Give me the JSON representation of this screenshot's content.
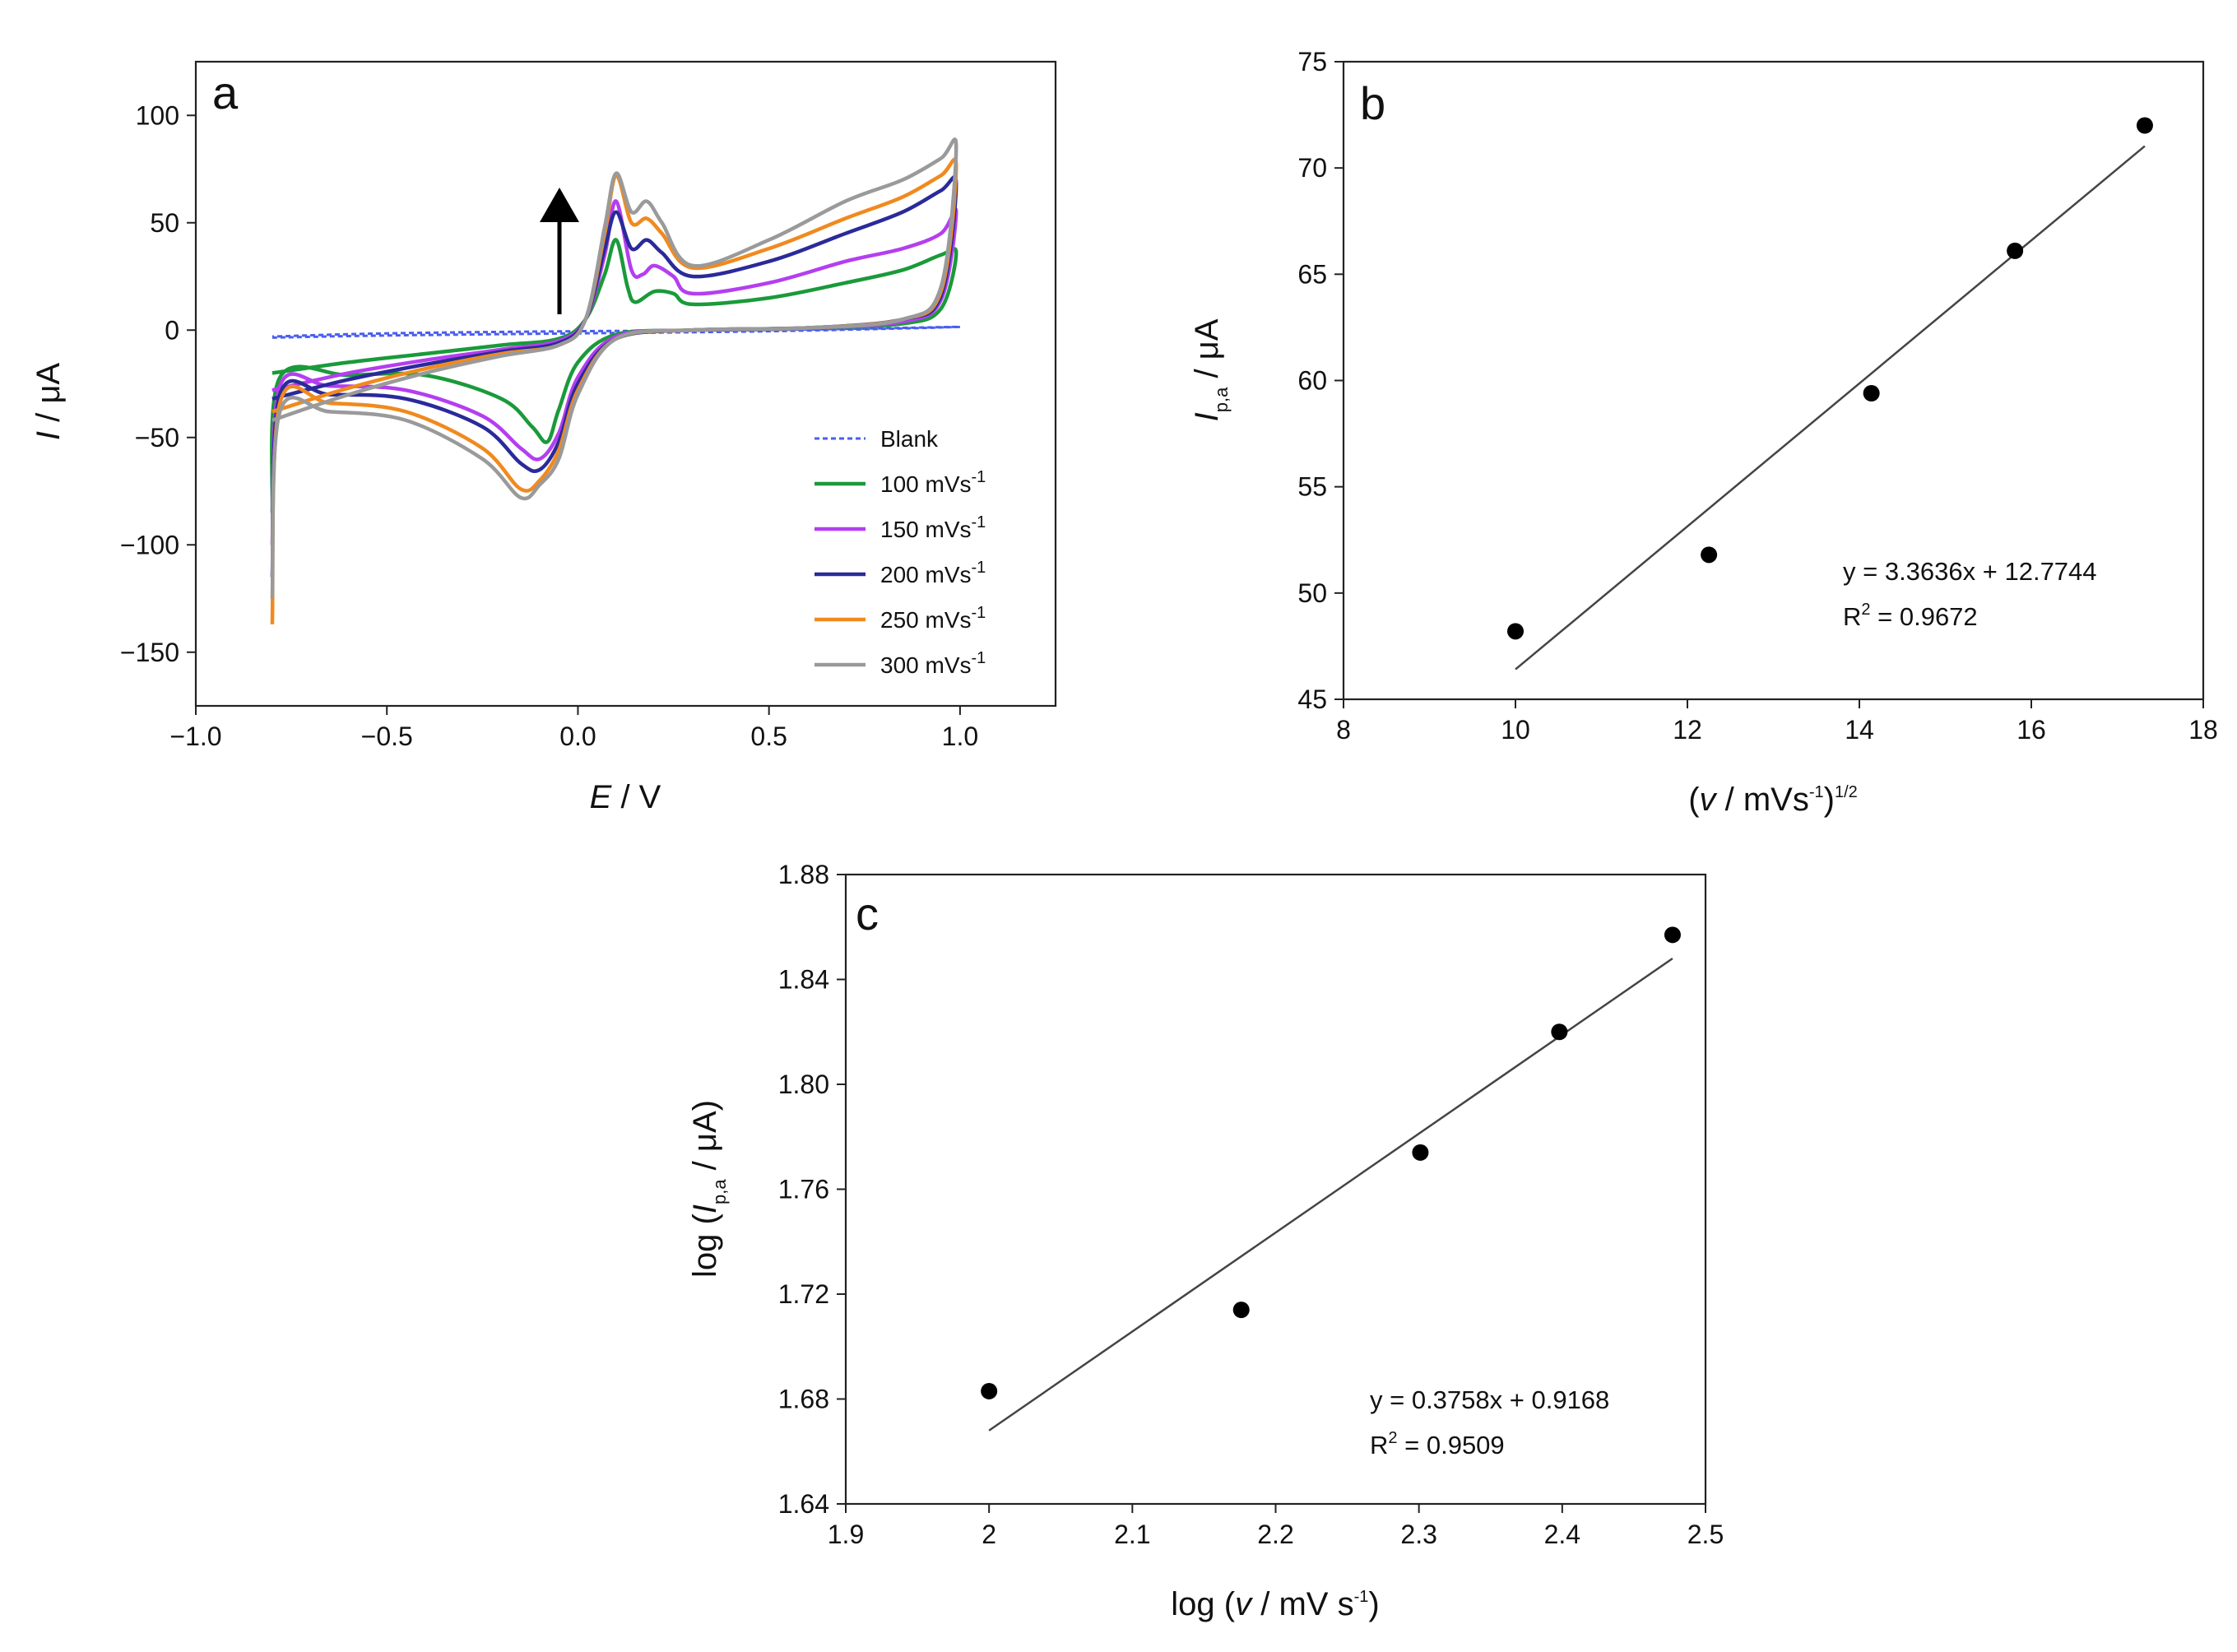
{
  "chart_data": [
    {
      "panel": "a",
      "type": "line",
      "xlabel": {
        "var": "E",
        "unit": " / V"
      },
      "ylabel": {
        "var": "I",
        "unit": " / μA"
      },
      "xlim": [
        -1.0,
        1.25
      ],
      "ylim": [
        -175,
        125
      ],
      "xticks": [
        -1.0,
        -0.5,
        0.0,
        0.5,
        1.0
      ],
      "xtick_labels": [
        "−1.0",
        "−0.5",
        "0.0",
        "0.5",
        "1.0"
      ],
      "yticks": [
        -150,
        -100,
        -50,
        0,
        50,
        100
      ],
      "ytick_labels": [
        "−150",
        "−100",
        "−50",
        "0",
        "50",
        "100"
      ],
      "legend_position": "bottom-right",
      "annotation": "arrow pointing up (increasing scan rate)",
      "series": [
        {
          "name": "Blank",
          "label_text": "Blank",
          "label_sup": "",
          "color": "#4a5ef0",
          "dashed": true,
          "forward": [
            [
              -0.8,
              -3.5
            ],
            [
              -0.5,
              -2.5
            ],
            [
              0,
              -1.5
            ],
            [
              0.5,
              -0.5
            ],
            [
              1.0,
              1.5
            ]
          ],
          "reverse": [
            [
              1.0,
              1.5
            ],
            [
              0.5,
              0
            ],
            [
              0,
              -0.5
            ],
            [
              -0.5,
              -1.5
            ],
            [
              -0.8,
              -3
            ]
          ]
        },
        {
          "name": "100 mVs-1",
          "label_text": "100 mVs",
          "label_sup": "-1",
          "color": "#1a9a3a",
          "dashed": false,
          "forward": [
            [
              -0.8,
              -20
            ],
            [
              -0.6,
              -15
            ],
            [
              -0.4,
              -11
            ],
            [
              -0.2,
              -7
            ],
            [
              -0.05,
              -4
            ],
            [
              0.02,
              5
            ],
            [
              0.07,
              26
            ],
            [
              0.1,
              42
            ],
            [
              0.13,
              20
            ],
            [
              0.15,
              13
            ],
            [
              0.2,
              18
            ],
            [
              0.25,
              17
            ],
            [
              0.3,
              12
            ],
            [
              0.5,
              15
            ],
            [
              0.7,
              22
            ],
            [
              0.85,
              28
            ],
            [
              0.95,
              35
            ],
            [
              0.99,
              36
            ]
          ],
          "reverse": [
            [
              0.99,
              36
            ],
            [
              0.95,
              10
            ],
            [
              0.85,
              3
            ],
            [
              0.6,
              1
            ],
            [
              0.3,
              0
            ],
            [
              0.1,
              -2
            ],
            [
              0.0,
              -15
            ],
            [
              -0.05,
              -37
            ],
            [
              -0.08,
              -52
            ],
            [
              -0.12,
              -45
            ],
            [
              -0.2,
              -32
            ],
            [
              -0.4,
              -21
            ],
            [
              -0.6,
              -21
            ],
            [
              -0.78,
              -22
            ],
            [
              -0.8,
              -85
            ]
          ]
        },
        {
          "name": "150 mVs-1",
          "label_text": "150 mVs",
          "label_sup": "-1",
          "color": "#b43ef0",
          "dashed": false,
          "forward": [
            [
              -0.8,
              -28
            ],
            [
              -0.6,
              -20
            ],
            [
              -0.4,
              -14
            ],
            [
              -0.2,
              -9
            ],
            [
              -0.05,
              -5
            ],
            [
              0.02,
              5
            ],
            [
              0.07,
              35
            ],
            [
              0.1,
              60
            ],
            [
              0.14,
              28
            ],
            [
              0.17,
              26
            ],
            [
              0.2,
              30
            ],
            [
              0.25,
              25
            ],
            [
              0.3,
              17
            ],
            [
              0.5,
              22
            ],
            [
              0.7,
              32
            ],
            [
              0.85,
              38
            ],
            [
              0.95,
              45
            ],
            [
              0.99,
              55
            ]
          ],
          "reverse": [
            [
              0.99,
              55
            ],
            [
              0.95,
              14
            ],
            [
              0.85,
              4
            ],
            [
              0.6,
              1
            ],
            [
              0.3,
              0
            ],
            [
              0.1,
              -3
            ],
            [
              0.0,
              -22
            ],
            [
              -0.05,
              -48
            ],
            [
              -0.1,
              -60
            ],
            [
              -0.15,
              -55
            ],
            [
              -0.25,
              -40
            ],
            [
              -0.45,
              -28
            ],
            [
              -0.65,
              -26
            ],
            [
              -0.78,
              -26
            ],
            [
              -0.8,
              -100
            ]
          ]
        },
        {
          "name": "200 mVs-1",
          "label_text": "200 mVs",
          "label_sup": "-1",
          "color": "#2a2a9a",
          "dashed": false,
          "forward": [
            [
              -0.8,
              -32
            ],
            [
              -0.6,
              -23
            ],
            [
              -0.4,
              -16
            ],
            [
              -0.2,
              -10
            ],
            [
              -0.05,
              -6
            ],
            [
              0.02,
              5
            ],
            [
              0.07,
              38
            ],
            [
              0.1,
              55
            ],
            [
              0.14,
              38
            ],
            [
              0.18,
              42
            ],
            [
              0.22,
              36
            ],
            [
              0.3,
              25
            ],
            [
              0.5,
              32
            ],
            [
              0.7,
              45
            ],
            [
              0.85,
              55
            ],
            [
              0.95,
              65
            ],
            [
              0.99,
              68
            ]
          ],
          "reverse": [
            [
              0.99,
              68
            ],
            [
              0.95,
              16
            ],
            [
              0.85,
              5
            ],
            [
              0.6,
              1
            ],
            [
              0.3,
              0
            ],
            [
              0.1,
              -4
            ],
            [
              0.0,
              -25
            ],
            [
              -0.05,
              -52
            ],
            [
              -0.1,
              -65
            ],
            [
              -0.15,
              -62
            ],
            [
              -0.25,
              -45
            ],
            [
              -0.45,
              -32
            ],
            [
              -0.65,
              -30
            ],
            [
              -0.78,
              -30
            ],
            [
              -0.8,
              -115
            ]
          ]
        },
        {
          "name": "250 mVs-1",
          "label_text": "250 mVs",
          "label_sup": "-1",
          "color": "#f08a1e",
          "dashed": false,
          "forward": [
            [
              -0.8,
              -38
            ],
            [
              -0.6,
              -27
            ],
            [
              -0.4,
              -18
            ],
            [
              -0.2,
              -11
            ],
            [
              -0.05,
              -7
            ],
            [
              0.02,
              5
            ],
            [
              0.07,
              45
            ],
            [
              0.1,
              72
            ],
            [
              0.14,
              50
            ],
            [
              0.18,
              52
            ],
            [
              0.22,
              45
            ],
            [
              0.3,
              29
            ],
            [
              0.5,
              38
            ],
            [
              0.7,
              52
            ],
            [
              0.85,
              62
            ],
            [
              0.95,
              72
            ],
            [
              0.99,
              76
            ]
          ],
          "reverse": [
            [
              0.99,
              76
            ],
            [
              0.95,
              18
            ],
            [
              0.85,
              5
            ],
            [
              0.6,
              1
            ],
            [
              0.3,
              0
            ],
            [
              0.1,
              -4
            ],
            [
              0.0,
              -28
            ],
            [
              -0.05,
              -56
            ],
            [
              -0.1,
              -70
            ],
            [
              -0.15,
              -74
            ],
            [
              -0.25,
              -55
            ],
            [
              -0.45,
              -38
            ],
            [
              -0.65,
              -34
            ],
            [
              -0.78,
              -34
            ],
            [
              -0.8,
              -137
            ]
          ]
        },
        {
          "name": "300 mVs-1",
          "label_text": "300 mVs",
          "label_sup": "-1",
          "color": "#9a9a9a",
          "dashed": false,
          "forward": [
            [
              -0.8,
              -42
            ],
            [
              -0.6,
              -30
            ],
            [
              -0.4,
              -20
            ],
            [
              -0.2,
              -12
            ],
            [
              -0.05,
              -7
            ],
            [
              0.02,
              5
            ],
            [
              0.07,
              48
            ],
            [
              0.1,
              73
            ],
            [
              0.14,
              55
            ],
            [
              0.18,
              60
            ],
            [
              0.22,
              50
            ],
            [
              0.3,
              30
            ],
            [
              0.5,
              42
            ],
            [
              0.7,
              60
            ],
            [
              0.85,
              70
            ],
            [
              0.95,
              80
            ],
            [
              0.99,
              85
            ]
          ],
          "reverse": [
            [
              0.99,
              85
            ],
            [
              0.95,
              20
            ],
            [
              0.85,
              5
            ],
            [
              0.6,
              1
            ],
            [
              0.3,
              0
            ],
            [
              0.1,
              -4
            ],
            [
              0.0,
              -30
            ],
            [
              -0.05,
              -60
            ],
            [
              -0.1,
              -72
            ],
            [
              -0.15,
              -78
            ],
            [
              -0.25,
              -60
            ],
            [
              -0.45,
              -42
            ],
            [
              -0.65,
              -38
            ],
            [
              -0.78,
              -38
            ],
            [
              -0.8,
              -125
            ]
          ]
        }
      ]
    },
    {
      "panel": "b",
      "type": "scatter",
      "xlabel": {
        "pre": "(",
        "var": "v",
        "mid": " / mVs",
        "sup1": "-1",
        "post": ")",
        "sup2": "1/2"
      },
      "ylabel": {
        "var": "I",
        "sub": "p,a",
        "unit": " / μA"
      },
      "xlim": [
        8,
        18
      ],
      "ylim": [
        45,
        75
      ],
      "xticks": [
        8,
        10,
        12,
        14,
        16,
        18
      ],
      "yticks": [
        45,
        50,
        55,
        60,
        65,
        70,
        75
      ],
      "x": [
        10.0,
        12.25,
        14.14,
        15.81,
        17.32
      ],
      "y": [
        48.2,
        51.8,
        59.4,
        66.1,
        72.0
      ],
      "fit": {
        "x": [
          10.0,
          17.32
        ],
        "y": [
          46.41,
          71.03
        ]
      },
      "equation": "y = 3.3636x + 12.7744",
      "r2_prefix": "R",
      "r2_sup": "2",
      "r2_value": " = 0.9672"
    },
    {
      "panel": "c",
      "type": "scatter",
      "xlabel": {
        "pre": "log (",
        "var": "v",
        "mid": " / mV s",
        "sup1": "-1",
        "post": ")"
      },
      "ylabel": {
        "pre": "log (",
        "var": "I",
        "sub": "p,a",
        "unit": " / μA)"
      },
      "xlim": [
        1.9,
        2.5
      ],
      "ylim": [
        1.64,
        1.88
      ],
      "xticks": [
        1.9,
        2.0,
        2.1,
        2.2,
        2.3,
        2.4,
        2.5
      ],
      "yticks": [
        1.64,
        1.68,
        1.72,
        1.76,
        1.8,
        1.84,
        1.88
      ],
      "x": [
        2.0,
        2.176,
        2.301,
        2.398,
        2.477
      ],
      "y": [
        1.683,
        1.714,
        1.774,
        1.82,
        1.857
      ],
      "fit": {
        "x": [
          2.0,
          2.477
        ],
        "y": [
          1.668,
          1.848
        ]
      },
      "equation": "y = 0.3758x + 0.9168",
      "r2_prefix": "R",
      "r2_sup": "2",
      "r2_value": " = 0.9509"
    }
  ]
}
